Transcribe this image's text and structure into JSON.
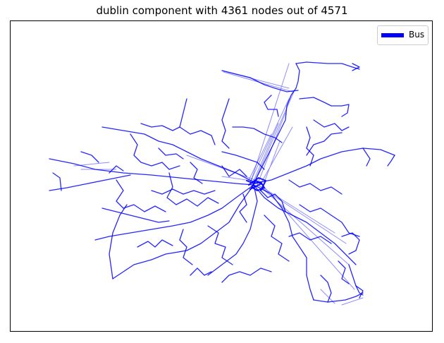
{
  "title": "dublin component with 4361 nodes out of 4571",
  "legend": {
    "label": "Bus",
    "color": "#0000ff"
  },
  "map_style": {
    "route_color": "#0000ff",
    "background": "#ffffff",
    "frame": "black box, no axis ticks"
  }
}
